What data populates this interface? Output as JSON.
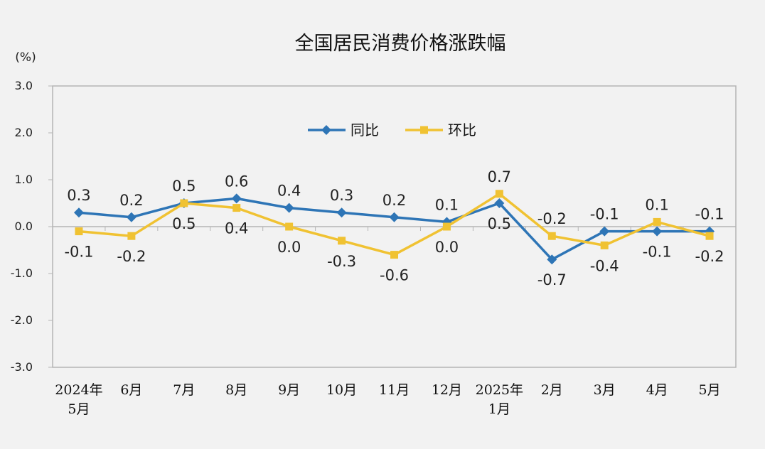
{
  "chart_data": {
    "type": "line",
    "title": "全国居民消费价格涨跌幅",
    "unit": "(%)",
    "ylim": [
      -3.0,
      3.0
    ],
    "yticks": [
      "3.0",
      "2.0",
      "1.0",
      "0.0",
      "-1.0",
      "-2.0",
      "-3.0"
    ],
    "categories": [
      [
        "2024年",
        "5月"
      ],
      [
        "6月"
      ],
      [
        "7月"
      ],
      [
        "8月"
      ],
      [
        "9月"
      ],
      [
        "10月"
      ],
      [
        "11月"
      ],
      [
        "12月"
      ],
      [
        "2025年",
        "1月"
      ],
      [
        "2月"
      ],
      [
        "3月"
      ],
      [
        "4月"
      ],
      [
        "5月"
      ]
    ],
    "series": [
      {
        "name": "同比",
        "color": "#2e75b6",
        "marker": "diamond",
        "values": [
          0.3,
          0.2,
          0.5,
          0.6,
          0.4,
          0.3,
          0.2,
          0.1,
          0.5,
          -0.7,
          -0.1,
          -0.1,
          -0.1
        ],
        "labels": [
          "0.3",
          "0.2",
          "0.5",
          "0.6",
          "0.4",
          "0.3",
          "0.2",
          "0.1",
          "0.5",
          "-0.7",
          "-0.1",
          "-0.1",
          "-0.1"
        ]
      },
      {
        "name": "环比",
        "color": "#f0c232",
        "marker": "square",
        "values": [
          -0.1,
          -0.2,
          0.5,
          0.4,
          0.0,
          -0.3,
          -0.6,
          0.0,
          0.7,
          -0.2,
          -0.4,
          0.1,
          -0.2
        ],
        "labels": [
          "-0.1",
          "-0.2",
          "0.5",
          "0.4",
          "0.0",
          "-0.3",
          "-0.6",
          "0.0",
          "0.7",
          "-0.2",
          "-0.4",
          "0.1",
          "-0.2"
        ]
      }
    ],
    "legend": "top-center",
    "grid": false,
    "zero_line": true
  }
}
